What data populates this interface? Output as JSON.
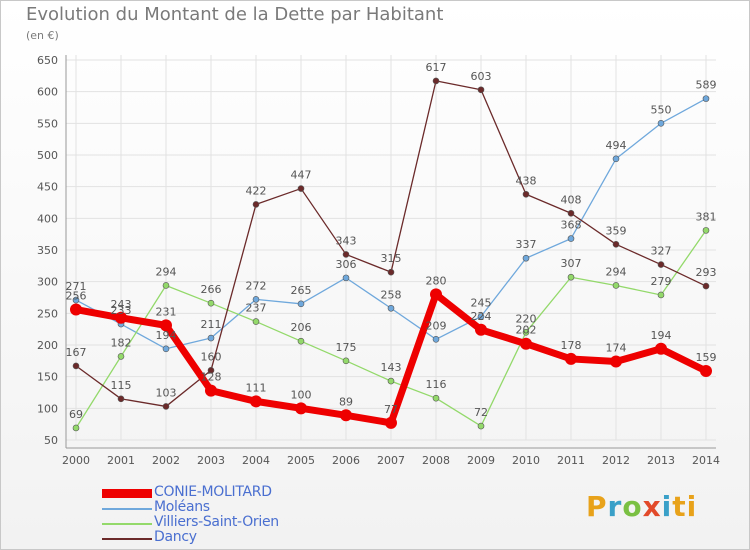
{
  "title": "Evolution du Montant de la Dette par Habitant",
  "unit": "(en €)",
  "logo_text": "Proxiti",
  "chart_data": {
    "type": "line",
    "title": "Evolution du Montant de la Dette par Habitant",
    "ylabel": "(en €)",
    "xlabel": "",
    "ylim": [
      50,
      650
    ],
    "yticks": [
      50,
      100,
      150,
      200,
      250,
      300,
      350,
      400,
      450,
      500,
      550,
      600,
      650
    ],
    "categories": [
      "2000",
      "2001",
      "2002",
      "2003",
      "2004",
      "2005",
      "2006",
      "2007",
      "2008",
      "2009",
      "2010",
      "2011",
      "2012",
      "2013",
      "2014"
    ],
    "grid": true,
    "legend_position": "bottom-left",
    "series": [
      {
        "name": "CONIE-MOLITARD",
        "color": "#ee0000",
        "values": [
          256,
          243,
          231,
          128,
          111,
          100,
          89,
          77,
          280,
          224,
          202,
          178,
          174,
          194,
          159
        ]
      },
      {
        "name": "Moléans",
        "color": "#6fa8dc",
        "values": [
          271,
          233,
          194,
          211,
          272,
          265,
          306,
          258,
          209,
          245,
          337,
          368,
          494,
          550,
          589
        ]
      },
      {
        "name": "Villiers-Saint-Orien",
        "color": "#93d96a",
        "values": [
          69,
          182,
          294,
          266,
          237,
          206,
          175,
          143,
          116,
          72,
          220,
          307,
          294,
          279,
          381
        ]
      },
      {
        "name": "Dancy",
        "color": "#6b2a2a",
        "values": [
          167,
          115,
          103,
          160,
          422,
          447,
          343,
          315,
          617,
          603,
          438,
          408,
          359,
          327,
          293
        ]
      }
    ],
    "data_labels": [
      [
        "256",
        "243",
        "231",
        "128",
        "111",
        "100",
        "89",
        "77",
        "280",
        "224",
        "202",
        "178",
        "174",
        "194",
        "159"
      ],
      [
        "271",
        "233",
        "194",
        "211",
        "272",
        "265",
        "306",
        "258",
        "209",
        "245",
        "337",
        "368",
        "494",
        "550",
        "589"
      ],
      [
        "69",
        "182",
        "294",
        "266",
        "237",
        "206",
        "175",
        "143",
        "116",
        "72",
        "220",
        "307",
        "294",
        "279",
        "381"
      ],
      [
        "167",
        "115",
        "103",
        "160",
        "422",
        "447",
        "343",
        "315",
        "617",
        "603",
        "438",
        "408",
        "359",
        "327",
        "293"
      ]
    ]
  }
}
